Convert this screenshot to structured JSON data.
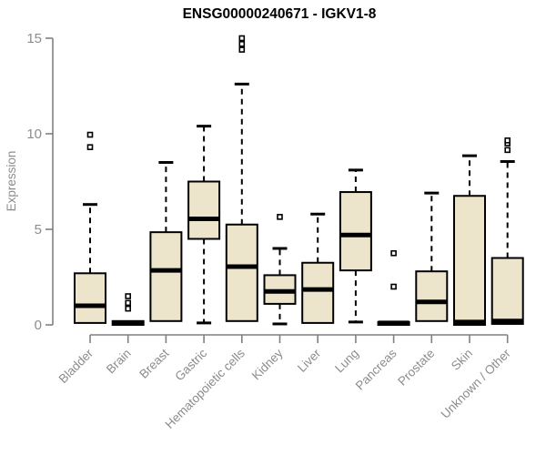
{
  "page": {
    "background": "#ffffff"
  },
  "chart_data": {
    "type": "boxplot",
    "title": "ENSG00000240671 - IGKV1-8",
    "ylabel": "Expression",
    "xlabel": "",
    "ylim": [
      0,
      15
    ],
    "yticks": [
      0,
      5,
      10,
      15
    ],
    "grid": false,
    "legend": null,
    "categories": [
      "Bladder",
      "Brain",
      "Breast",
      "Gastric",
      "Hematopoietic cells",
      "Kidney",
      "Liver",
      "Lung",
      "Pancreas",
      "Prostate",
      "Skin",
      "Unknown / Other"
    ],
    "series": [
      {
        "name": "Bladder",
        "whisker_low": 0.1,
        "q1": 0.1,
        "median": 1.0,
        "q3": 2.7,
        "whisker_high": 6.3,
        "outliers": [
          9.3,
          9.95
        ]
      },
      {
        "name": "Brain",
        "whisker_low": 0.0,
        "q1": 0.0,
        "median": 0.1,
        "q3": 0.2,
        "whisker_high": 0.2,
        "outliers": [
          0.85,
          1.15,
          1.5
        ]
      },
      {
        "name": "Breast",
        "whisker_low": 0.2,
        "q1": 0.2,
        "median": 2.85,
        "q3": 4.85,
        "whisker_high": 8.5,
        "outliers": []
      },
      {
        "name": "Gastric",
        "whisker_low": 0.1,
        "q1": 4.5,
        "median": 5.55,
        "q3": 7.5,
        "whisker_high": 10.4,
        "outliers": []
      },
      {
        "name": "Hematopoietic cells",
        "whisker_low": 0.2,
        "q1": 0.2,
        "median": 3.05,
        "q3": 5.25,
        "whisker_high": 12.6,
        "outliers": [
          14.4,
          14.7,
          15.0
        ]
      },
      {
        "name": "Kidney",
        "whisker_low": 0.05,
        "q1": 1.1,
        "median": 1.75,
        "q3": 2.6,
        "whisker_high": 4.0,
        "outliers": [
          5.65
        ]
      },
      {
        "name": "Liver",
        "whisker_low": 0.1,
        "q1": 0.1,
        "median": 1.85,
        "q3": 3.25,
        "whisker_high": 5.8,
        "outliers": []
      },
      {
        "name": "Lung",
        "whisker_low": 0.15,
        "q1": 2.85,
        "median": 4.7,
        "q3": 6.95,
        "whisker_high": 8.1,
        "outliers": []
      },
      {
        "name": "Pancreas",
        "whisker_low": 0.0,
        "q1": 0.0,
        "median": 0.1,
        "q3": 0.15,
        "whisker_high": 0.15,
        "outliers": [
          2.0,
          3.75
        ]
      },
      {
        "name": "Prostate",
        "whisker_low": 0.2,
        "q1": 0.2,
        "median": 1.2,
        "q3": 2.8,
        "whisker_high": 6.9,
        "outliers": []
      },
      {
        "name": "Skin",
        "whisker_low": 0.0,
        "q1": 0.0,
        "median": 0.15,
        "q3": 6.75,
        "whisker_high": 8.85,
        "outliers": []
      },
      {
        "name": "Unknown / Other",
        "whisker_low": 0.05,
        "q1": 0.05,
        "median": 0.2,
        "q3": 3.5,
        "whisker_high": 8.55,
        "outliers": [
          9.15,
          9.5,
          9.65
        ]
      }
    ],
    "colors": {
      "box_fill": "#ede5cb",
      "box_border": "#000000",
      "median": "#000000",
      "whisker": "#000000",
      "outlier_fill": "#ffffff",
      "outlier_border": "#000000",
      "axis": "#808080",
      "tick_label": "#8c8c8c",
      "title": "#000000"
    }
  }
}
